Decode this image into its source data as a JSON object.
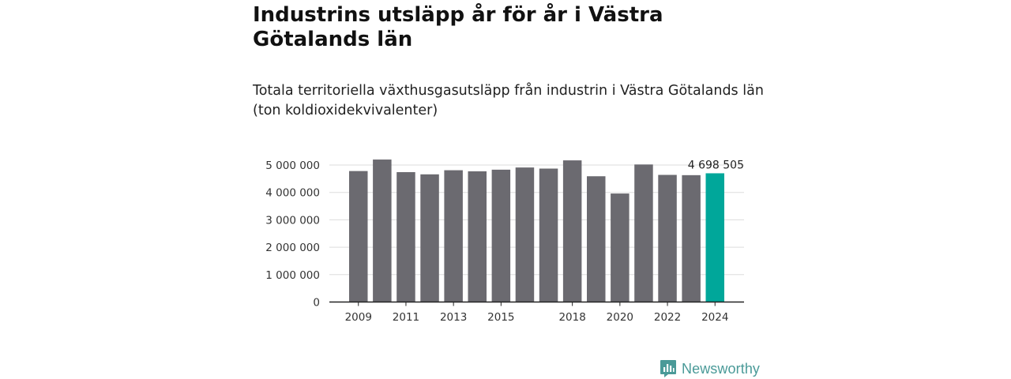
{
  "title": "Industrins utsläpp år för år i Västra Götalands län",
  "subtitle": "Totala territoriella växthusgasutsläpp från industrin i Västra Götalands län (ton koldioxidekvivalenter)",
  "brand": {
    "name": "Newsworthy",
    "icon": "newsworthy-chart-bubble-icon"
  },
  "colors": {
    "bar": "#6b6a70",
    "highlight": "#00a79a",
    "grid": "#dddddd",
    "axis": "#222222",
    "brand": "#4a9a98"
  },
  "chart_data": {
    "type": "bar",
    "categories": [
      "2009",
      "2010",
      "2011",
      "2012",
      "2013",
      "2014",
      "2015",
      "2016",
      "2017",
      "2018",
      "2019",
      "2020",
      "2021",
      "2022",
      "2023",
      "2024"
    ],
    "values": [
      4780000,
      5200000,
      4740000,
      4660000,
      4810000,
      4770000,
      4830000,
      4910000,
      4870000,
      5170000,
      4590000,
      3960000,
      5020000,
      4640000,
      4630000,
      4698505
    ],
    "x_tick_labels": [
      "2009",
      "2011",
      "2013",
      "2015",
      "2018",
      "2020",
      "2022",
      "2024"
    ],
    "y_ticks": [
      0,
      1000000,
      2000000,
      3000000,
      4000000,
      5000000
    ],
    "y_tick_labels": [
      "0",
      "1 000 000",
      "2 000 000",
      "3 000 000",
      "4 000 000",
      "5 000 000"
    ],
    "ylim": [
      0,
      5200000
    ],
    "highlight_index": 15,
    "data_labels": [
      {
        "index": 15,
        "text": "4 698 505"
      }
    ],
    "grid": true,
    "xlabel": "",
    "ylabel": ""
  }
}
